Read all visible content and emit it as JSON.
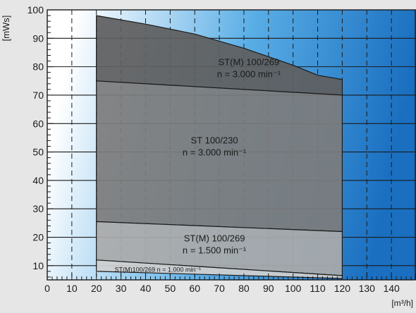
{
  "chart_data": {
    "type": "area",
    "xlabel": "[m³/h]",
    "ylabel": "[mWs]",
    "xlim": [
      0,
      150
    ],
    "ylim": [
      5,
      100
    ],
    "x_ticks": [
      0,
      10,
      20,
      30,
      40,
      50,
      60,
      70,
      80,
      90,
      100,
      110,
      120,
      130,
      140
    ],
    "y_ticks": [
      10,
      20,
      30,
      40,
      50,
      60,
      70,
      80,
      90,
      100
    ],
    "grid": true,
    "background_gradient": [
      "#ffffff",
      "#5aaee6",
      "#1a6fc0"
    ],
    "regions": [
      {
        "name": "ST(M) 100/269",
        "subtitle": "n = 3.000 min⁻¹",
        "color": "#5f5f5f",
        "label_pos": [
          82,
          80.5
        ],
        "top": [
          [
            20,
            98
          ],
          [
            40,
            95
          ],
          [
            60,
            91.5
          ],
          [
            80,
            86.5
          ],
          [
            100,
            80.5
          ],
          [
            110,
            77
          ],
          [
            120,
            75.5
          ]
        ],
        "bottom": [
          [
            20,
            75
          ],
          [
            120,
            70
          ]
        ]
      },
      {
        "name": "ST 100/230",
        "subtitle": "n = 3.000 min⁻¹",
        "color": "#7c7c7c",
        "label_pos": [
          68,
          53
        ],
        "top": [
          [
            20,
            75
          ],
          [
            120,
            70
          ]
        ],
        "bottom": [
          [
            20,
            25.5
          ],
          [
            120,
            22
          ]
        ]
      },
      {
        "name": "ST(M) 100/269",
        "subtitle": "n = 1.500 min⁻¹",
        "color": "#aaaaaa",
        "label_pos": [
          68,
          18.5
        ],
        "top": [
          [
            20,
            25.5
          ],
          [
            120,
            22
          ]
        ],
        "bottom": [
          [
            20,
            12
          ],
          [
            120,
            6.5
          ]
        ]
      },
      {
        "name": "ST(M)100/269 n = 1.000 min⁻¹",
        "subtitle": "",
        "color": "#d0d0d0",
        "label_pos": [
          45,
          8.6
        ],
        "top": [
          [
            20,
            12
          ],
          [
            120,
            6.5
          ]
        ],
        "bottom": [
          [
            20,
            8
          ],
          [
            120,
            5.5
          ]
        ]
      }
    ]
  }
}
